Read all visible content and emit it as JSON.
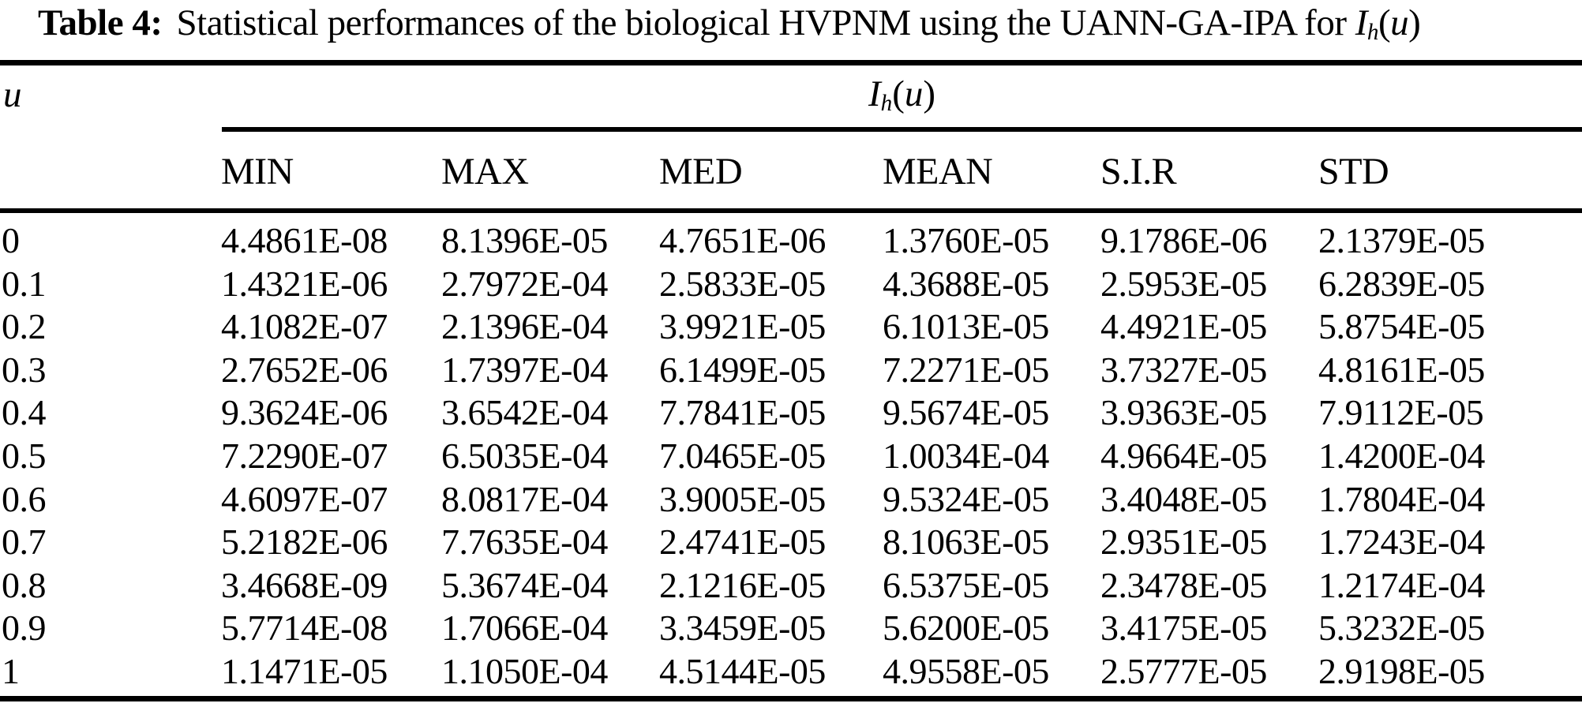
{
  "caption": {
    "label": "Table 4:",
    "text": "Statistical performances of the biological HVPNM using the UANN-GA-IPA for",
    "math": {
      "base": "I",
      "sub": "h",
      "open": "(",
      "var": "u",
      "close": ")"
    }
  },
  "table": {
    "stub_header": "u",
    "span_header": {
      "base": "I",
      "sub": "h",
      "open": "(",
      "var": "u",
      "close": ")"
    },
    "columns": [
      "MIN",
      "MAX",
      "MED",
      "MEAN",
      "S.I.R",
      "STD"
    ],
    "rows": [
      [
        "0",
        "4.4861E-08",
        "8.1396E-05",
        "4.7651E-06",
        "1.3760E-05",
        "9.1786E-06",
        "2.1379E-05"
      ],
      [
        "0.1",
        "1.4321E-06",
        "2.7972E-04",
        "2.5833E-05",
        "4.3688E-05",
        "2.5953E-05",
        "6.2839E-05"
      ],
      [
        "0.2",
        "4.1082E-07",
        "2.1396E-04",
        "3.9921E-05",
        "6.1013E-05",
        "4.4921E-05",
        "5.8754E-05"
      ],
      [
        "0.3",
        "2.7652E-06",
        "1.7397E-04",
        "6.1499E-05",
        "7.2271E-05",
        "3.7327E-05",
        "4.8161E-05"
      ],
      [
        "0.4",
        "9.3624E-06",
        "3.6542E-04",
        "7.7841E-05",
        "9.5674E-05",
        "3.9363E-05",
        "7.9112E-05"
      ],
      [
        "0.5",
        "7.2290E-07",
        "6.5035E-04",
        "7.0465E-05",
        "1.0034E-04",
        "4.9664E-05",
        "1.4200E-04"
      ],
      [
        "0.6",
        "4.6097E-07",
        "8.0817E-04",
        "3.9005E-05",
        "9.5324E-05",
        "3.4048E-05",
        "1.7804E-04"
      ],
      [
        "0.7",
        "5.2182E-06",
        "7.7635E-04",
        "2.4741E-05",
        "8.1063E-05",
        "2.9351E-05",
        "1.7243E-04"
      ],
      [
        "0.8",
        "3.4668E-09",
        "5.3674E-04",
        "2.1216E-05",
        "6.5375E-05",
        "2.3478E-05",
        "1.2174E-04"
      ],
      [
        "0.9",
        "5.7714E-08",
        "1.7066E-04",
        "3.3459E-05",
        "5.6200E-05",
        "3.4175E-05",
        "5.3232E-05"
      ],
      [
        "1",
        "1.1471E-05",
        "1.1050E-04",
        "4.5144E-05",
        "4.9558E-05",
        "2.5777E-05",
        "2.9198E-05"
      ]
    ]
  },
  "colors": {
    "text": "#000000",
    "background": "#ffffff",
    "rule": "#000000"
  }
}
